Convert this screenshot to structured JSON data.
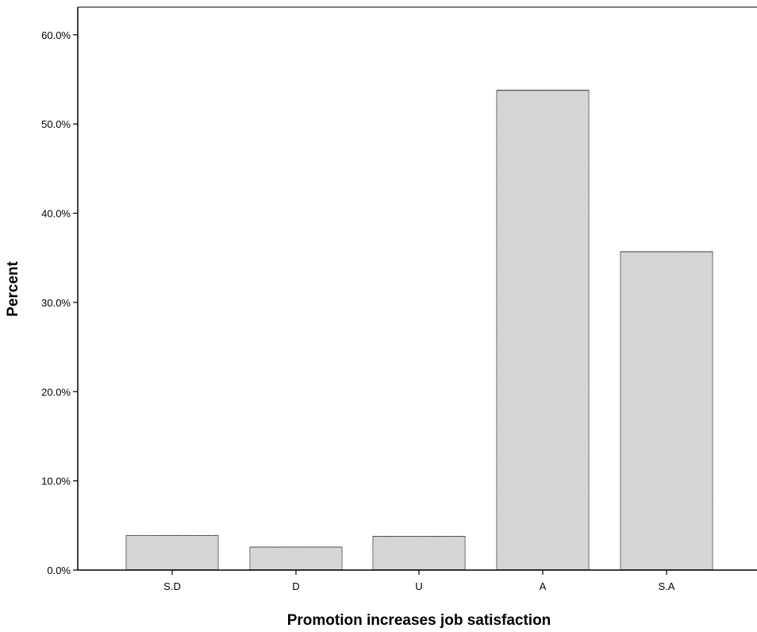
{
  "chart_data": {
    "type": "bar",
    "xlabel": "Promotion increases job satisfaction",
    "ylabel": "Percent",
    "categories": [
      "S.D",
      "D",
      "U",
      "A",
      "S.A"
    ],
    "values": [
      3.9,
      2.6,
      3.8,
      53.8,
      35.7
    ],
    "ylim": [
      0,
      63.1
    ],
    "yticks": [
      0,
      10,
      20,
      30,
      40,
      50,
      60
    ],
    "ytick_labels": [
      "0.0%",
      "10.0%",
      "20.0%",
      "30.0%",
      "40.0%",
      "50.0%",
      "60.0%"
    ],
    "grid": false,
    "legend": "none",
    "bar_color": "#d9d9d9",
    "bar_edge_color": "#000000"
  }
}
